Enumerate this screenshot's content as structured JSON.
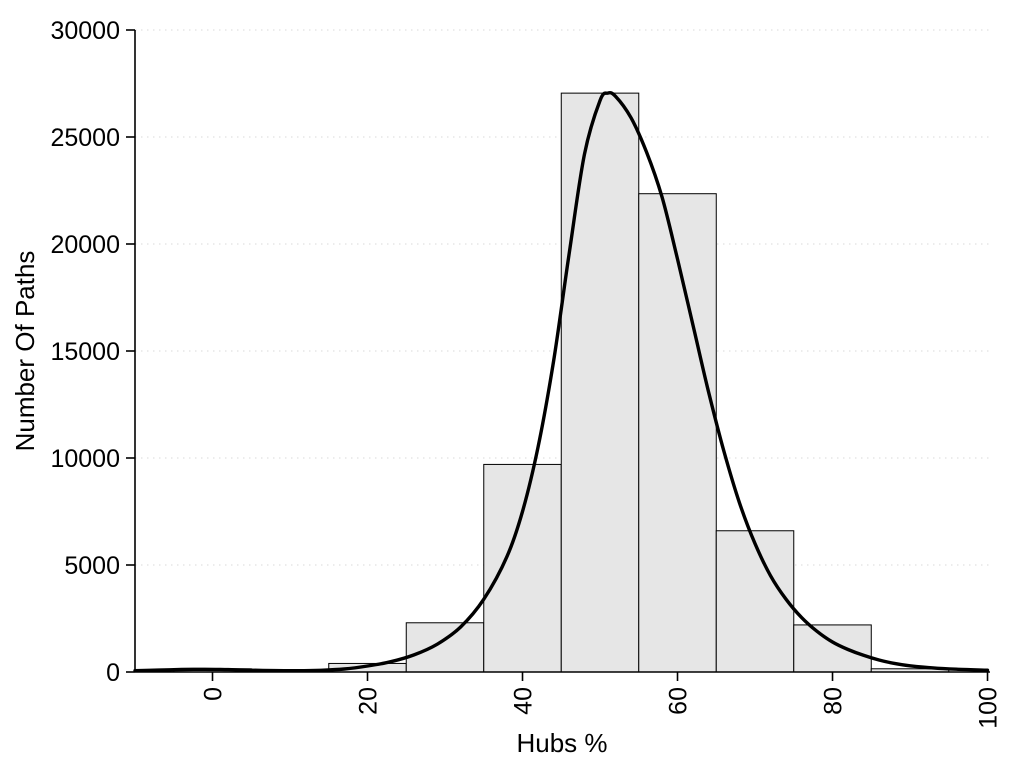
{
  "chart_data": {
    "type": "bar",
    "subtype": "histogram-with-density-curve",
    "title": "",
    "xlabel": "Hubs %",
    "ylabel": "Number Of Paths",
    "xlim": [
      -10,
      100.32
    ],
    "ylim": [
      0,
      30000
    ],
    "x_ticks": [
      0,
      20,
      40,
      60,
      80,
      100
    ],
    "y_ticks": [
      0,
      5000,
      10000,
      15000,
      20000,
      25000,
      30000
    ],
    "x_tick_labels": [
      "0",
      "20",
      "40",
      "60",
      "80",
      "100"
    ],
    "y_tick_labels": [
      "0",
      "5000",
      "10000",
      "15000",
      "20000",
      "25000",
      "30000"
    ],
    "grid": "horizontal-dotted",
    "legend": "none",
    "bar_fill": "#e6e6e6",
    "bar_stroke": "#000000",
    "curve_color": "#000000",
    "grid_color": "#d9d9d9",
    "background": "#ffffff",
    "bins": [
      {
        "x0": -5,
        "x1": 5,
        "count": 150
      },
      {
        "x0": 5,
        "x1": 15,
        "count": 40
      },
      {
        "x0": 15,
        "x1": 25,
        "count": 400
      },
      {
        "x0": 25,
        "x1": 35,
        "count": 2300
      },
      {
        "x0": 35,
        "x1": 45,
        "count": 9700
      },
      {
        "x0": 45,
        "x1": 55,
        "count": 27050
      },
      {
        "x0": 55,
        "x1": 65,
        "count": 22350
      },
      {
        "x0": 65,
        "x1": 75,
        "count": 6600
      },
      {
        "x0": 75,
        "x1": 85,
        "count": 2200
      },
      {
        "x0": 85,
        "x1": 95,
        "count": 150
      }
    ],
    "curve": {
      "x": [
        -10,
        -7,
        -4,
        -1,
        2,
        5,
        8,
        11,
        14,
        17,
        20,
        23,
        26,
        29,
        32,
        35,
        38,
        40,
        42,
        44,
        46,
        48,
        50,
        51,
        52,
        54,
        56,
        58,
        60,
        62,
        64,
        66,
        68,
        70,
        72,
        74,
        76,
        78,
        80,
        82,
        84,
        86,
        88,
        90,
        93,
        96,
        100
      ],
      "y": [
        60,
        90,
        115,
        125,
        110,
        85,
        65,
        60,
        80,
        140,
        280,
        480,
        800,
        1300,
        2100,
        3400,
        5400,
        7500,
        10500,
        14500,
        19500,
        24200,
        26700,
        27050,
        26900,
        25900,
        24300,
        22200,
        19300,
        16200,
        13100,
        10300,
        7900,
        6000,
        4500,
        3400,
        2550,
        1900,
        1400,
        1050,
        780,
        560,
        400,
        290,
        190,
        130,
        85
      ]
    }
  }
}
